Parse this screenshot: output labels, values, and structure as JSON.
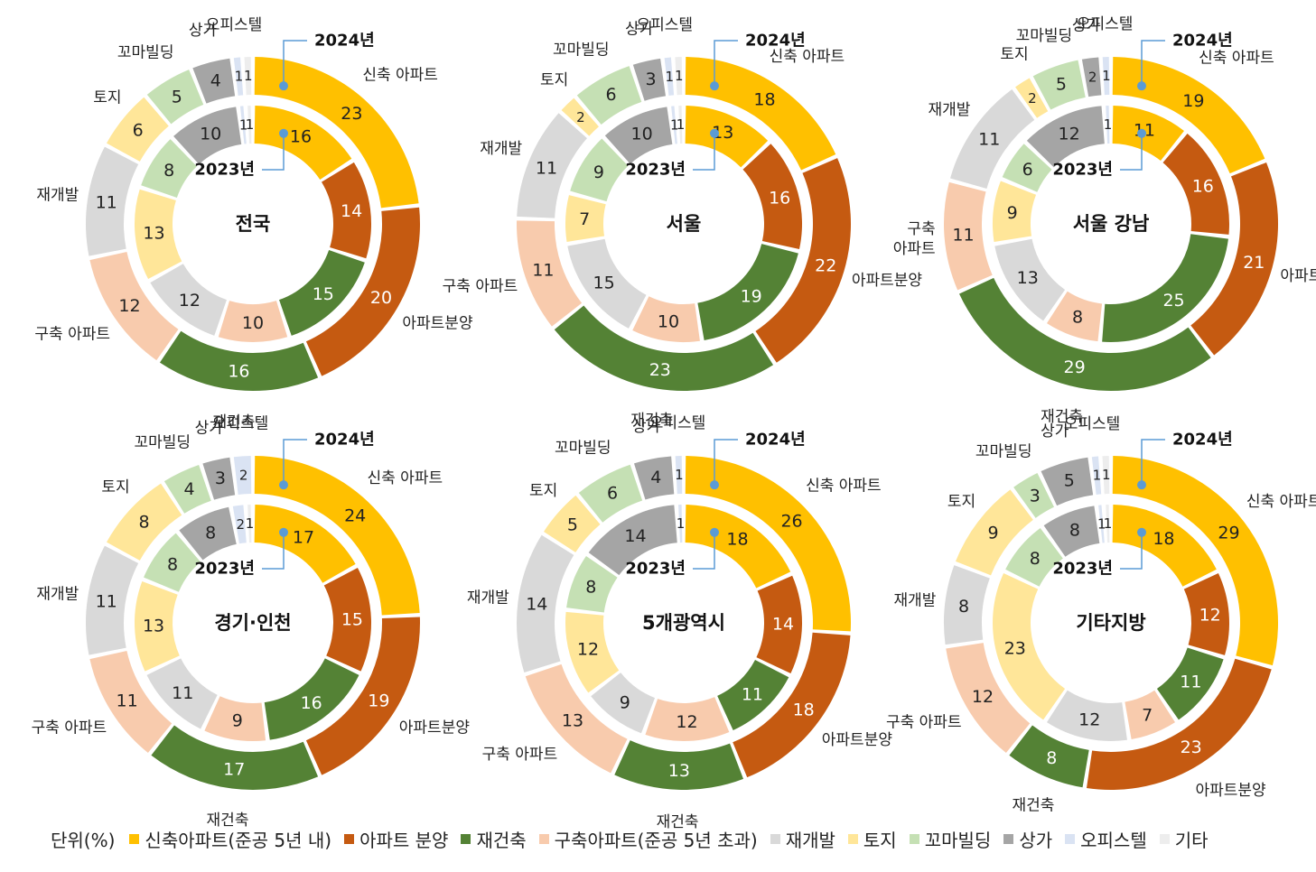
{
  "labels": {
    "year_outer": "2024년",
    "year_inner": "2023년",
    "unit": "단위(%)"
  },
  "categories": [
    {
      "key": "new_apt",
      "legend": "신축아파트(준공 5년 내)",
      "color": "#FFC000"
    },
    {
      "key": "apt_sale",
      "legend": "아파트 분양",
      "color": "#C55A11"
    },
    {
      "key": "recon",
      "legend": "재건축",
      "color": "#548235"
    },
    {
      "key": "old_apt",
      "legend": "구축아파트(준공 5년 초과)",
      "color": "#F8CBAD"
    },
    {
      "key": "redev",
      "legend": "재개발",
      "color": "#D9D9D9"
    },
    {
      "key": "land",
      "legend": "토지",
      "color": "#FFE699"
    },
    {
      "key": "small_bldg",
      "legend": "꼬마빌딩",
      "color": "#C5E0B4"
    },
    {
      "key": "store",
      "legend": "상가",
      "color": "#A5A5A5"
    },
    {
      "key": "officetel",
      "legend": "오피스텔",
      "color": "#DAE3F3"
    },
    {
      "key": "other",
      "legend": "기타",
      "color": "#EDEDED"
    }
  ],
  "chart_data": [
    {
      "type": "donut",
      "title": "전국",
      "series": [
        {
          "name": "2024년",
          "values": [
            23,
            20,
            16,
            12,
            11,
            6,
            5,
            4,
            1,
            1
          ]
        },
        {
          "name": "2023년",
          "values": [
            16,
            14,
            15,
            10,
            12,
            13,
            8,
            10,
            1,
            1
          ]
        }
      ],
      "category_labels": [
        "신축 아파트",
        "아파트분양",
        "재건축",
        "구축 아파트",
        "재개발",
        "토지",
        "꼬마빌딩",
        "상가",
        "오피스텔"
      ]
    },
    {
      "type": "donut",
      "title": "서울",
      "series": [
        {
          "name": "2024년",
          "values": [
            18,
            22,
            23,
            11,
            11,
            2,
            6,
            3,
            1,
            1
          ]
        },
        {
          "name": "2023년",
          "values": [
            13,
            16,
            19,
            10,
            15,
            7,
            9,
            10,
            1,
            1
          ]
        }
      ],
      "category_labels": [
        "신축 아파트",
        "아파트분양",
        "재건축",
        "구축 아파트",
        "재개발",
        "토지",
        "꼬마빌딩",
        "상가",
        "오피스텔"
      ]
    },
    {
      "type": "donut",
      "title": "서울 강남",
      "series": [
        {
          "name": "2024년",
          "values": [
            19,
            21,
            29,
            11,
            11,
            2,
            5,
            2,
            1,
            0
          ]
        },
        {
          "name": "2023년",
          "values": [
            11,
            16,
            25,
            8,
            13,
            9,
            6,
            12,
            1,
            0
          ]
        }
      ],
      "category_labels": [
        "신축 아파트",
        "아파트분양",
        "재건축",
        "구축\n아파트",
        "재개발",
        "토지",
        "꼬마빌딩",
        "상가",
        "오피스텔"
      ]
    },
    {
      "type": "donut",
      "title": "경기·인천",
      "series": [
        {
          "name": "2024년",
          "values": [
            24,
            19,
            17,
            11,
            11,
            8,
            4,
            3,
            2,
            0
          ]
        },
        {
          "name": "2023년",
          "values": [
            17,
            15,
            16,
            9,
            11,
            13,
            8,
            8,
            2,
            1
          ]
        }
      ],
      "category_labels": [
        "신축 아파트",
        "아파트분양",
        "재건축",
        "구축 아파트",
        "재개발",
        "토지",
        "꼬마빌딩",
        "상가",
        "오피스텔"
      ]
    },
    {
      "type": "donut",
      "title": "5개광역시",
      "series": [
        {
          "name": "2024년",
          "values": [
            26,
            18,
            13,
            13,
            14,
            5,
            6,
            4,
            1,
            0
          ]
        },
        {
          "name": "2023년",
          "values": [
            18,
            14,
            11,
            12,
            9,
            12,
            8,
            14,
            1,
            0
          ]
        }
      ],
      "category_labels": [
        "신축 아파트",
        "아파트분양",
        "재건축",
        "구축 아파트",
        "재개발",
        "토지",
        "꼬마빌딩",
        "상가",
        "오피스텔"
      ]
    },
    {
      "type": "donut",
      "title": "기타지방",
      "series": [
        {
          "name": "2024년",
          "values": [
            29,
            23,
            8,
            12,
            8,
            9,
            3,
            5,
            1,
            1
          ]
        },
        {
          "name": "2023년",
          "values": [
            18,
            12,
            11,
            7,
            12,
            23,
            8,
            8,
            1,
            1
          ]
        }
      ],
      "category_labels": [
        "신축 아파트",
        "아파트분양",
        "재건축",
        "구축 아파트",
        "재개발",
        "토지",
        "꼬마빌딩",
        "상가",
        "오피스텔"
      ]
    }
  ]
}
